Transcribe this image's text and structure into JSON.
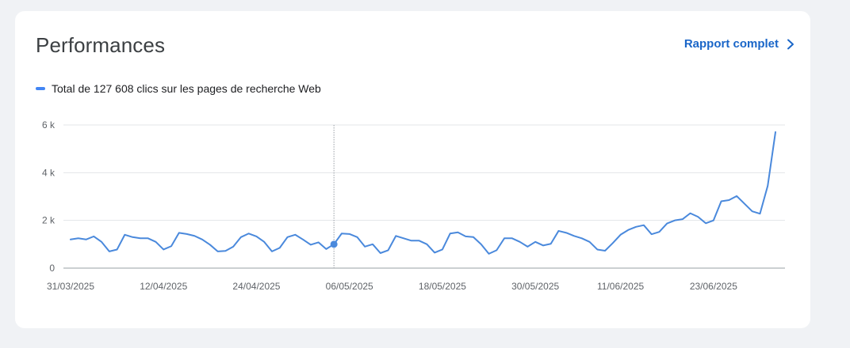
{
  "card": {
    "title": "Performances",
    "report_link_label": "Rapport complet"
  },
  "chart_data": {
    "type": "line",
    "legend": "Total de 127 608 clics sur les pages de recherche Web",
    "legend_placement": "top-left",
    "grid": true,
    "ylim": [
      0,
      6000
    ],
    "y_ticks": [
      {
        "value": 0,
        "label": "0"
      },
      {
        "value": 2000,
        "label": "2 k"
      },
      {
        "value": 4000,
        "label": "4 k"
      },
      {
        "value": 6000,
        "label": "6 k"
      }
    ],
    "x_tick_labels": [
      "31/03/2025",
      "12/04/2025",
      "24/04/2025",
      "06/05/2025",
      "18/05/2025",
      "30/05/2025",
      "11/06/2025",
      "23/06/2025"
    ],
    "x_tick_indices": [
      0,
      12,
      24,
      36,
      48,
      60,
      71,
      83
    ],
    "highlight_index": 34,
    "color": "#4a89dc",
    "values": [
      1200,
      1250,
      1200,
      1330,
      1100,
      700,
      780,
      1400,
      1300,
      1250,
      1250,
      1100,
      780,
      920,
      1480,
      1430,
      1350,
      1200,
      980,
      700,
      720,
      900,
      1300,
      1450,
      1330,
      1100,
      700,
      850,
      1300,
      1400,
      1200,
      980,
      1080,
      800,
      1000,
      1450,
      1430,
      1300,
      900,
      1000,
      630,
      750,
      1350,
      1250,
      1150,
      1150,
      1000,
      650,
      780,
      1450,
      1500,
      1330,
      1300,
      1000,
      600,
      750,
      1250,
      1250,
      1100,
      900,
      1100,
      950,
      1020,
      1560,
      1480,
      1350,
      1250,
      1100,
      780,
      730,
      1050,
      1400,
      1600,
      1730,
      1800,
      1420,
      1520,
      1870,
      2000,
      2050,
      2300,
      2150,
      1880,
      2000,
      2800,
      2850,
      3020,
      2700,
      2380,
      2280,
      3450,
      5700
    ]
  }
}
